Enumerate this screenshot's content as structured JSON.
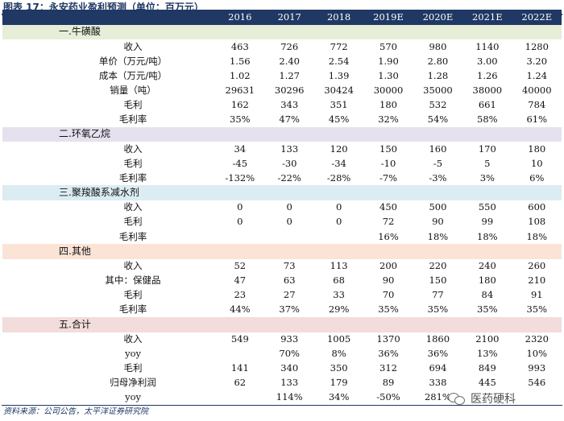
{
  "figure": {
    "title": "图表 17：永安药业盈利预测（单位：百万元）",
    "source": "资料来源：公司公告，太平洋证券研究院",
    "watermark": "医药硬科"
  },
  "table": {
    "years": [
      "2016",
      "2017",
      "2018",
      "2019E",
      "2020E",
      "2021E",
      "2022E"
    ],
    "sections": [
      {
        "title": "一.牛磺酸",
        "rows": [
          {
            "label": "收入",
            "values": [
              "463",
              "726",
              "772",
              "570",
              "980",
              "1140",
              "1280"
            ]
          },
          {
            "label": "单价（万元/吨）",
            "values": [
              "1.56",
              "2.40",
              "2.54",
              "1.90",
              "2.80",
              "3.00",
              "3.20"
            ]
          },
          {
            "label": "成本（万元/吨）",
            "values": [
              "1.02",
              "1.27",
              "1.39",
              "1.30",
              "1.28",
              "1.26",
              "1.24"
            ]
          },
          {
            "label": "销量（吨）",
            "values": [
              "29631",
              "30296",
              "30424",
              "30000",
              "35000",
              "38000",
              "40000"
            ]
          },
          {
            "label": "毛利",
            "values": [
              "162",
              "343",
              "351",
              "180",
              "532",
              "661",
              "784"
            ]
          },
          {
            "label": "毛利率",
            "values": [
              "35%",
              "47%",
              "45%",
              "32%",
              "54%",
              "58%",
              "61%"
            ]
          }
        ]
      },
      {
        "title": "二.环氧乙烷",
        "rows": [
          {
            "label": "收入",
            "values": [
              "34",
              "133",
              "120",
              "150",
              "160",
              "170",
              "180"
            ]
          },
          {
            "label": "毛利",
            "values": [
              "-45",
              "-30",
              "-34",
              "-10",
              "-5",
              "5",
              "10"
            ]
          },
          {
            "label": "毛利率",
            "values": [
              "-132%",
              "-22%",
              "-28%",
              "-7%",
              "-3%",
              "3%",
              "6%"
            ]
          }
        ]
      },
      {
        "title": "三.聚羧酸系减水剂",
        "rows": [
          {
            "label": "收入",
            "values": [
              "0",
              "0",
              "0",
              "450",
              "500",
              "550",
              "600"
            ]
          },
          {
            "label": "毛利",
            "values": [
              "0",
              "0",
              "0",
              "72",
              "90",
              "99",
              "108"
            ]
          },
          {
            "label": "毛利率",
            "values": [
              "",
              "",
              "",
              "16%",
              "18%",
              "18%",
              "18%"
            ]
          }
        ]
      },
      {
        "title": "四.其他",
        "rows": [
          {
            "label": "收入",
            "values": [
              "52",
              "73",
              "113",
              "200",
              "220",
              "240",
              "260"
            ]
          },
          {
            "label": "其中：保健品",
            "values": [
              "47",
              "63",
              "68",
              "90",
              "150",
              "180",
              "210"
            ]
          },
          {
            "label": "毛利",
            "values": [
              "23",
              "27",
              "33",
              "70",
              "77",
              "84",
              "91"
            ]
          },
          {
            "label": "毛利率",
            "values": [
              "44%",
              "37%",
              "29%",
              "35%",
              "35%",
              "35%",
              "35%"
            ]
          }
        ]
      },
      {
        "title": "五.合计",
        "rows": [
          {
            "label": "收入",
            "values": [
              "549",
              "933",
              "1005",
              "1370",
              "1860",
              "2100",
              "2320"
            ]
          },
          {
            "label": "yoy",
            "values": [
              "",
              "70%",
              "8%",
              "36%",
              "36%",
              "13%",
              "10%"
            ]
          },
          {
            "label": "毛利",
            "values": [
              "141",
              "340",
              "350",
              "312",
              "694",
              "849",
              "993"
            ]
          },
          {
            "label": "归母净利润",
            "values": [
              "62",
              "133",
              "179",
              "89",
              "338",
              "445",
              "546"
            ]
          },
          {
            "label": "yoy",
            "values": [
              "",
              "114%",
              "34%",
              "-50%",
              "281%",
              "",
              ""
            ]
          }
        ]
      }
    ]
  }
}
